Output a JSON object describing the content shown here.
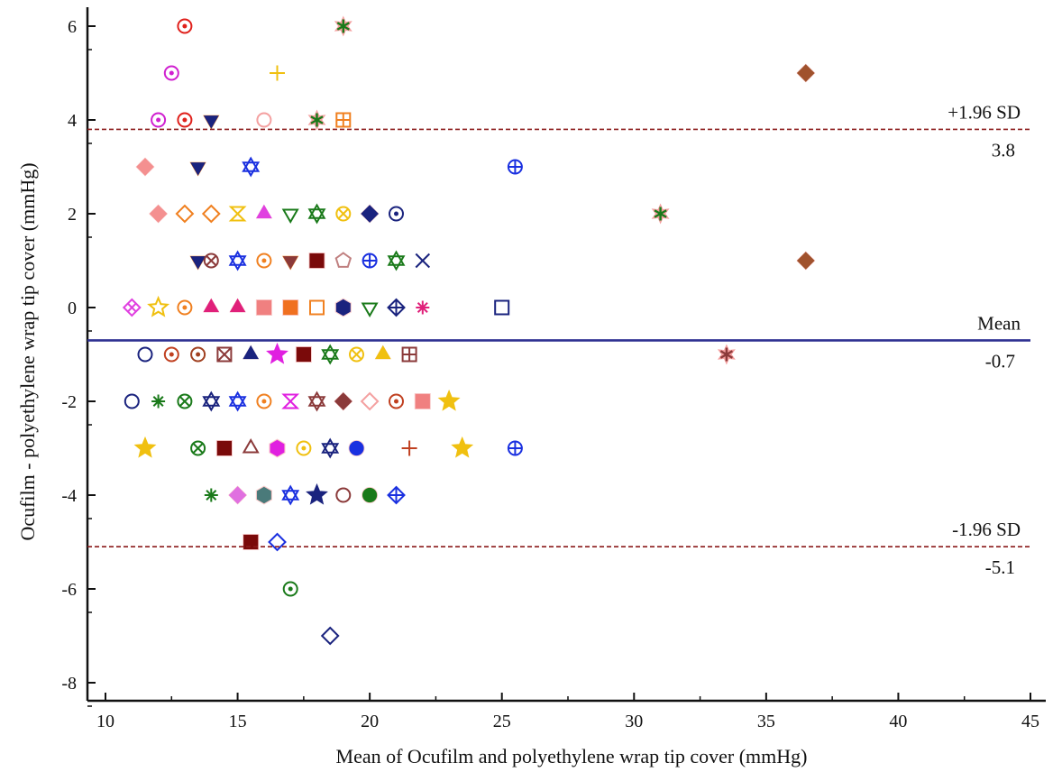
{
  "chart_data": {
    "type": "scatter",
    "title": "",
    "xlabel": "Mean of Ocufilm and polyethylene wrap tip cover (mmHg)",
    "ylabel": "Ocufilm - polyethylene wrap tip cover  (mmHg)",
    "xlim": [
      10,
      45
    ],
    "ylim": [
      -8,
      6
    ],
    "xticks": [
      "10",
      "15",
      "20",
      "25",
      "30",
      "35",
      "40",
      "45"
    ],
    "yticks": [
      "-8",
      "-6",
      "-4",
      "-2",
      "0",
      "2",
      "4",
      "6"
    ],
    "grid": false,
    "reference_lines": [
      {
        "value": 3.8,
        "label": "+1.96 SD",
        "value_label": "3.8",
        "style": "dashed",
        "color": "#8b1a1a"
      },
      {
        "value": -0.7,
        "label": "Mean",
        "value_label": "-0.7",
        "style": "solid",
        "color": "#2e3192"
      },
      {
        "value": -5.1,
        "label": "-1.96 SD",
        "value_label": "-5.1",
        "style": "dashed",
        "color": "#8b1a1a"
      }
    ],
    "points": [
      {
        "x": 13,
        "y": 6,
        "marker": "circledot",
        "color": "#e0201b"
      },
      {
        "x": 19,
        "y": 6,
        "marker": "star6",
        "color": "#1a7a1a"
      },
      {
        "x": 12.5,
        "y": 5,
        "marker": "circledot",
        "color": "#d020d0"
      },
      {
        "x": 16.5,
        "y": 5,
        "marker": "plus",
        "color": "#f0c010"
      },
      {
        "x": 36.5,
        "y": 5,
        "marker": "diamond",
        "color": "#a0522d"
      },
      {
        "x": 12,
        "y": 4,
        "marker": "circledot",
        "color": "#d020d0"
      },
      {
        "x": 13,
        "y": 4,
        "marker": "circledot",
        "color": "#e0201b"
      },
      {
        "x": 14,
        "y": 4,
        "marker": "trid",
        "color": "#1a237e"
      },
      {
        "x": 16,
        "y": 4,
        "marker": "circle",
        "color": "#f4a0a0"
      },
      {
        "x": 18,
        "y": 4,
        "marker": "star6",
        "color": "#1a7a1a"
      },
      {
        "x": 19,
        "y": 4,
        "marker": "squareplus",
        "color": "#f08020"
      },
      {
        "x": 11.5,
        "y": 3,
        "marker": "diamond",
        "color": "#f49090"
      },
      {
        "x": 13.5,
        "y": 3,
        "marker": "trid",
        "color": "#1a237e"
      },
      {
        "x": 15.5,
        "y": 3,
        "marker": "hexagram",
        "color": "#1a30e0"
      },
      {
        "x": 25.5,
        "y": 3,
        "marker": "circleplus",
        "color": "#1a30e0"
      },
      {
        "x": 12,
        "y": 2,
        "marker": "diamond",
        "color": "#f49090"
      },
      {
        "x": 13,
        "y": 2,
        "marker": "diamondo",
        "color": "#f08020"
      },
      {
        "x": 14,
        "y": 2,
        "marker": "diamondo",
        "color": "#f08020"
      },
      {
        "x": 15,
        "y": 2,
        "marker": "hourglass",
        "color": "#f0c010"
      },
      {
        "x": 16,
        "y": 2,
        "marker": "triu",
        "color": "#e040e0"
      },
      {
        "x": 17,
        "y": 2,
        "marker": "trido",
        "color": "#1a7a1a"
      },
      {
        "x": 18,
        "y": 2,
        "marker": "hexagram",
        "color": "#1a7a1a"
      },
      {
        "x": 19,
        "y": 2,
        "marker": "circlex",
        "color": "#f0c010"
      },
      {
        "x": 20,
        "y": 2,
        "marker": "diamond",
        "color": "#1a237e"
      },
      {
        "x": 21,
        "y": 2,
        "marker": "circledot",
        "color": "#1a237e"
      },
      {
        "x": 31,
        "y": 2,
        "marker": "star6",
        "color": "#1a7a1a"
      },
      {
        "x": 13.5,
        "y": 1,
        "marker": "trid",
        "color": "#1a237e"
      },
      {
        "x": 14,
        "y": 1,
        "marker": "circlex",
        "color": "#8b3a3a"
      },
      {
        "x": 15,
        "y": 1,
        "marker": "hexagram",
        "color": "#1a30e0"
      },
      {
        "x": 16,
        "y": 1,
        "marker": "circledot",
        "color": "#f08020"
      },
      {
        "x": 17,
        "y": 1,
        "marker": "trid",
        "color": "#8b3a3a"
      },
      {
        "x": 18,
        "y": 1,
        "marker": "square",
        "color": "#7a0a0a"
      },
      {
        "x": 19,
        "y": 1,
        "marker": "pentagono",
        "color": "#c08080"
      },
      {
        "x": 20,
        "y": 1,
        "marker": "circleplus",
        "color": "#1a30e0"
      },
      {
        "x": 21,
        "y": 1,
        "marker": "hexagram",
        "color": "#1a7a1a"
      },
      {
        "x": 22,
        "y": 1,
        "marker": "x",
        "color": "#1a237e"
      },
      {
        "x": 11,
        "y": 0,
        "marker": "diamondx",
        "color": "#e040e0"
      },
      {
        "x": 12,
        "y": 0,
        "marker": "staro",
        "color": "#f0c010"
      },
      {
        "x": 13,
        "y": 0,
        "marker": "circledot",
        "color": "#f08020"
      },
      {
        "x": 14,
        "y": 0,
        "marker": "triu",
        "color": "#e0207a"
      },
      {
        "x": 15,
        "y": 0,
        "marker": "triu",
        "color": "#e0207a"
      },
      {
        "x": 16,
        "y": 0,
        "marker": "square",
        "color": "#f08080"
      },
      {
        "x": 17,
        "y": 0,
        "marker": "square",
        "color": "#f07020"
      },
      {
        "x": 18,
        "y": 0,
        "marker": "squareo",
        "color": "#f08020"
      },
      {
        "x": 19,
        "y": 0,
        "marker": "hexagon",
        "color": "#1a237e"
      },
      {
        "x": 20,
        "y": 0,
        "marker": "trido",
        "color": "#1a7a1a"
      },
      {
        "x": 21,
        "y": 0,
        "marker": "diamondplus",
        "color": "#1a237e"
      },
      {
        "x": 22,
        "y": 0,
        "marker": "asterisk",
        "color": "#e0207a"
      },
      {
        "x": 25,
        "y": 0,
        "marker": "squareo",
        "color": "#1a237e"
      },
      {
        "x": 11.5,
        "y": -1,
        "marker": "circle",
        "color": "#1a237e"
      },
      {
        "x": 12.5,
        "y": -1,
        "marker": "circledot",
        "color": "#c04020"
      },
      {
        "x": 13.5,
        "y": -1,
        "marker": "circledot",
        "color": "#a04020"
      },
      {
        "x": 14.5,
        "y": -1,
        "marker": "squarex",
        "color": "#8b3a3a"
      },
      {
        "x": 15.5,
        "y": -1,
        "marker": "triu",
        "color": "#1a237e"
      },
      {
        "x": 16.5,
        "y": -1,
        "marker": "star5",
        "color": "#e020e0"
      },
      {
        "x": 17.5,
        "y": -1,
        "marker": "square",
        "color": "#7a0a0a"
      },
      {
        "x": 18.5,
        "y": -1,
        "marker": "hexagram",
        "color": "#1a7a1a"
      },
      {
        "x": 19.5,
        "y": -1,
        "marker": "circlex",
        "color": "#f0c010"
      },
      {
        "x": 20.5,
        "y": -1,
        "marker": "triu",
        "color": "#f0c010"
      },
      {
        "x": 21.5,
        "y": -1,
        "marker": "squareplus",
        "color": "#8b3a3a"
      },
      {
        "x": 33.5,
        "y": -1,
        "marker": "star6",
        "color": "#8b3a3a"
      },
      {
        "x": 11,
        "y": -2,
        "marker": "circle",
        "color": "#1a237e"
      },
      {
        "x": 12,
        "y": -2,
        "marker": "asterisk",
        "color": "#1a7a1a"
      },
      {
        "x": 13,
        "y": -2,
        "marker": "circlex",
        "color": "#1a7a1a"
      },
      {
        "x": 14,
        "y": -2,
        "marker": "hexagram",
        "color": "#1a237e"
      },
      {
        "x": 15,
        "y": -2,
        "marker": "hexagram",
        "color": "#1a30e0"
      },
      {
        "x": 16,
        "y": -2,
        "marker": "circledot",
        "color": "#f08020"
      },
      {
        "x": 17,
        "y": -2,
        "marker": "hourglass",
        "color": "#e020e0"
      },
      {
        "x": 18,
        "y": -2,
        "marker": "hexagram",
        "color": "#8b3a3a"
      },
      {
        "x": 19,
        "y": -2,
        "marker": "diamond",
        "color": "#8b3a3a"
      },
      {
        "x": 20,
        "y": -2,
        "marker": "diamondo",
        "color": "#f4a0a0"
      },
      {
        "x": 21,
        "y": -2,
        "marker": "circledot",
        "color": "#c04020"
      },
      {
        "x": 22,
        "y": -2,
        "marker": "square",
        "color": "#f08080"
      },
      {
        "x": 23,
        "y": -2,
        "marker": "star5",
        "color": "#f0c010"
      },
      {
        "x": 11.5,
        "y": -3,
        "marker": "star5",
        "color": "#f0c010"
      },
      {
        "x": 13.5,
        "y": -3,
        "marker": "circlex",
        "color": "#1a7a1a"
      },
      {
        "x": 14.5,
        "y": -3,
        "marker": "square",
        "color": "#7a0a0a"
      },
      {
        "x": 15.5,
        "y": -3,
        "marker": "triuo",
        "color": "#8b3a3a"
      },
      {
        "x": 16.5,
        "y": -3,
        "marker": "hexagon",
        "color": "#e020e0"
      },
      {
        "x": 17.5,
        "y": -3,
        "marker": "circledot",
        "color": "#f0c010"
      },
      {
        "x": 18.5,
        "y": -3,
        "marker": "hexagram",
        "color": "#1a237e"
      },
      {
        "x": 19.5,
        "y": -3,
        "marker": "circlefill",
        "color": "#1a30e0"
      },
      {
        "x": 21.5,
        "y": -3,
        "marker": "plus",
        "color": "#c04020"
      },
      {
        "x": 23.5,
        "y": -3,
        "marker": "star5",
        "color": "#f0c010"
      },
      {
        "x": 25.5,
        "y": -3,
        "marker": "circleplus",
        "color": "#1a30e0"
      },
      {
        "x": 14,
        "y": -4,
        "marker": "asterisk",
        "color": "#1a7a1a"
      },
      {
        "x": 15,
        "y": -4,
        "marker": "diamond",
        "color": "#e070e0"
      },
      {
        "x": 16,
        "y": -4,
        "marker": "hexagon",
        "color": "#4a7a7a"
      },
      {
        "x": 17,
        "y": -4,
        "marker": "hexagram",
        "color": "#1a30e0"
      },
      {
        "x": 18,
        "y": -4,
        "marker": "star5",
        "color": "#1a237e"
      },
      {
        "x": 19,
        "y": -4,
        "marker": "circle",
        "color": "#8b3a3a"
      },
      {
        "x": 20,
        "y": -4,
        "marker": "circlefill",
        "color": "#1a7a1a"
      },
      {
        "x": 21,
        "y": -4,
        "marker": "diamondplus",
        "color": "#1a30e0"
      },
      {
        "x": 15.5,
        "y": -5,
        "marker": "square",
        "color": "#7a0a0a"
      },
      {
        "x": 16.5,
        "y": -5,
        "marker": "diamondo",
        "color": "#1a30e0"
      },
      {
        "x": 17,
        "y": -6,
        "marker": "circledot",
        "color": "#1a7a1a"
      },
      {
        "x": 18.5,
        "y": -7,
        "marker": "diamondo",
        "color": "#1a237e"
      },
      {
        "x": 36.5,
        "y": 1,
        "marker": "diamond",
        "color": "#a0522d"
      }
    ]
  }
}
